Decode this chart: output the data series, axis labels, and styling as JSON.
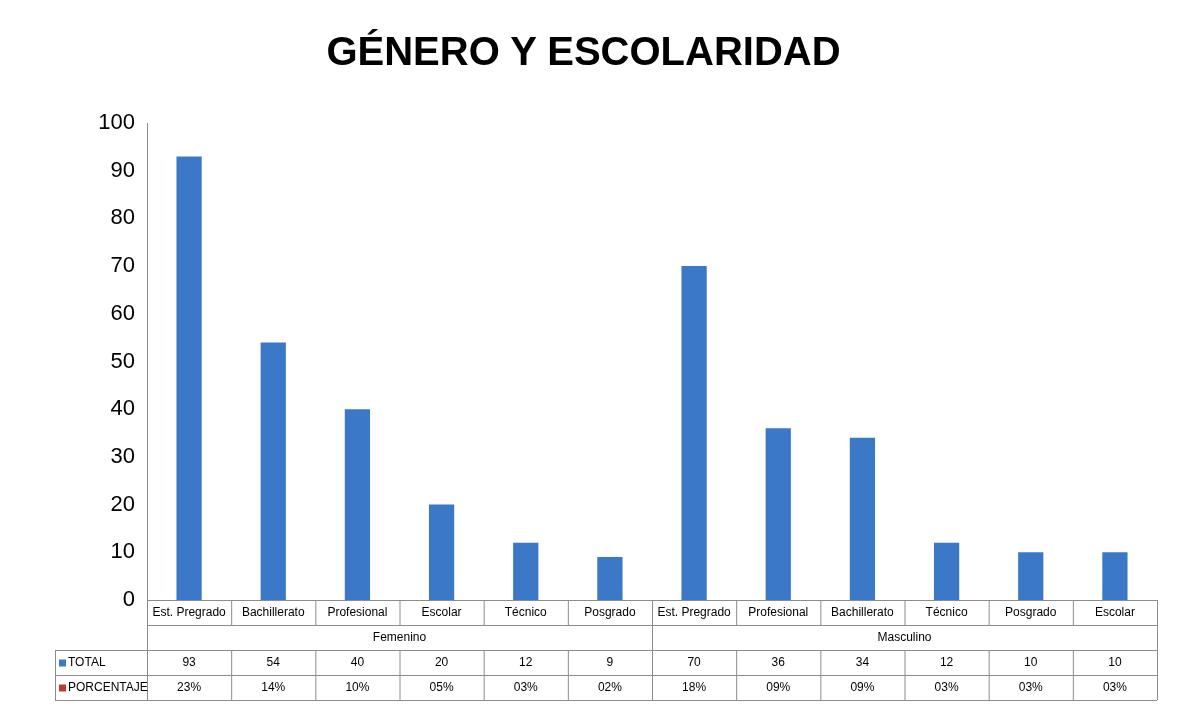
{
  "chart_data": {
    "type": "bar",
    "title": "GÉNERO Y ESCOLARIDAD",
    "categories": [
      "Est. Pregrado",
      "Bachillerato",
      "Profesional",
      "Escolar",
      "Técnico",
      "Posgrado",
      "Est. Pregrado",
      "Profesional",
      "Bachillerato",
      "Técnico",
      "Posgrado",
      "Escolar"
    ],
    "annotations": [
      "Femenino",
      "Masculino"
    ],
    "series": [
      {
        "name": "TOTAL",
        "color": "#3b78c8",
        "values": [
          93,
          54,
          40,
          20,
          12,
          9,
          70,
          36,
          34,
          12,
          10,
          10
        ]
      },
      {
        "name": "PORCENTAJE",
        "color": "#c0392b",
        "values": [
          null,
          null,
          null,
          null,
          null,
          null,
          null,
          null,
          null,
          null,
          null,
          null
        ],
        "value_labels": [
          "23%",
          "14%",
          "10%",
          "05%",
          "03%",
          "02%",
          "18%",
          "09%",
          "09%",
          "03%",
          "03%",
          "03%"
        ]
      }
    ],
    "ylim": [
      0,
      100
    ],
    "yticks": [
      0,
      10,
      20,
      30,
      40,
      50,
      60,
      70,
      80,
      90,
      100
    ],
    "grid": false,
    "legend": "bottom",
    "data_labels": true
  }
}
